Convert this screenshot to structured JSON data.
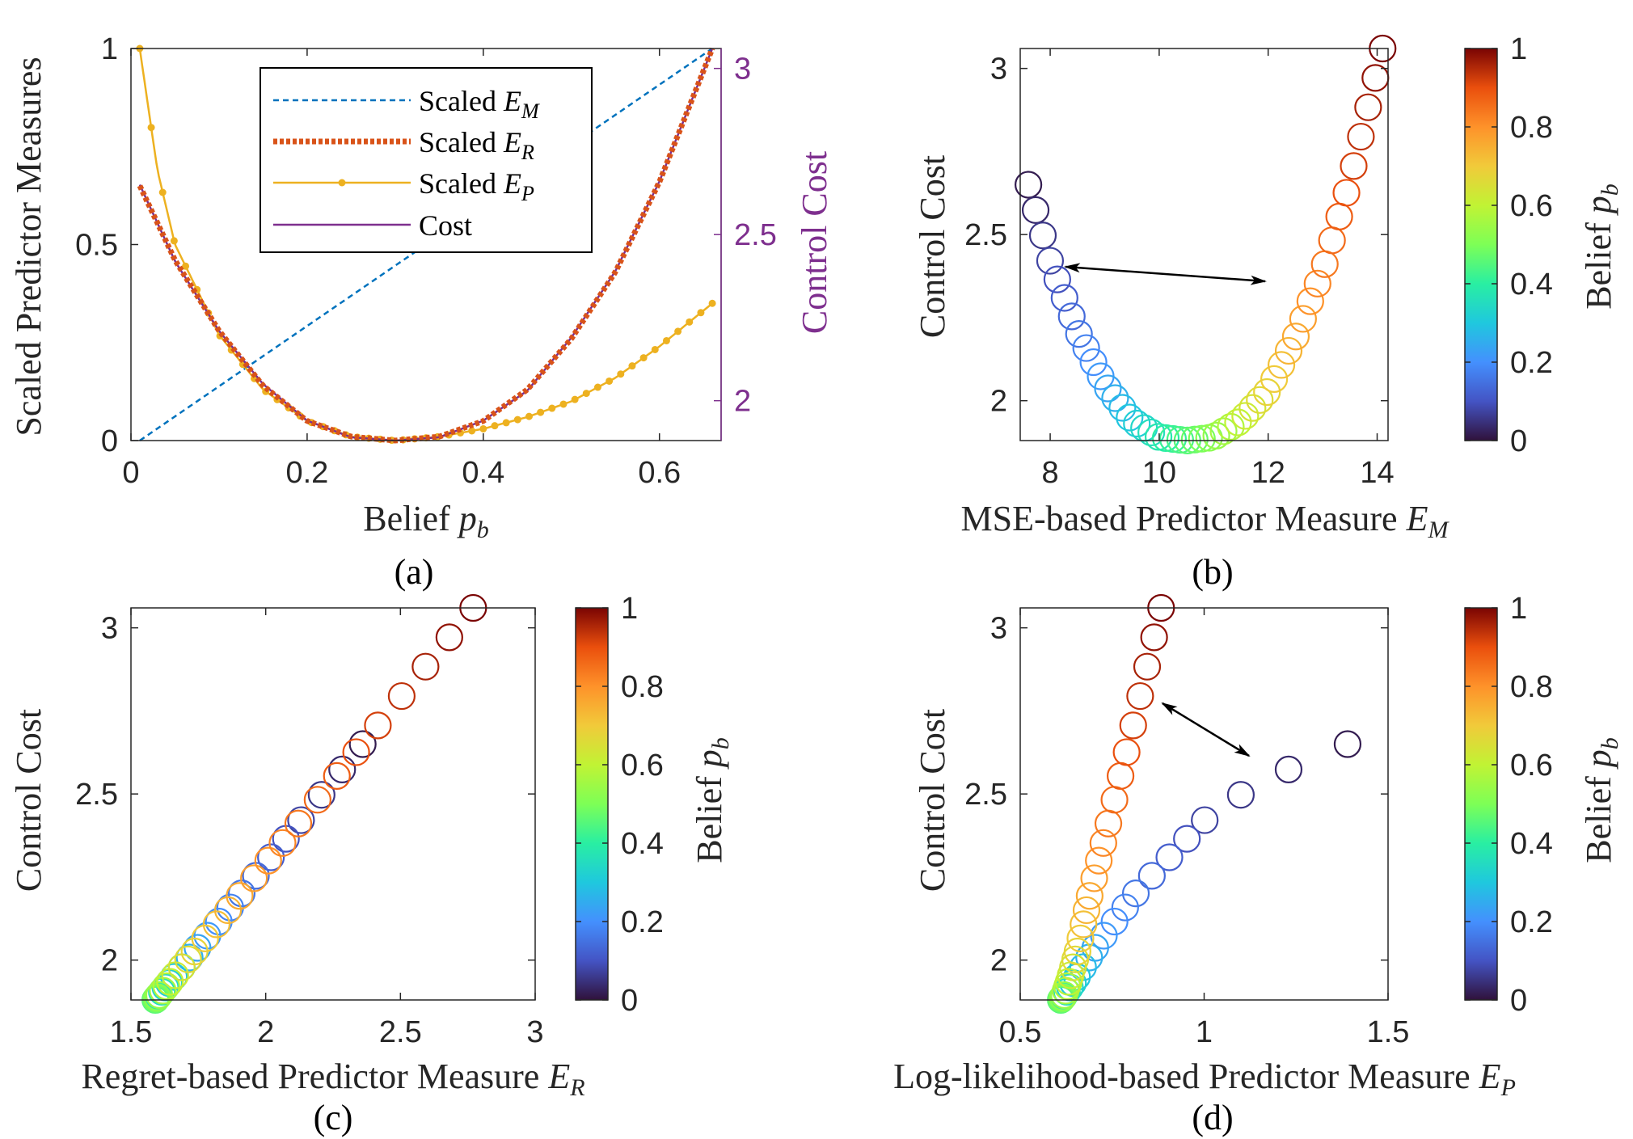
{
  "chart_data": [
    {
      "id": "a",
      "type": "line",
      "caption": "(a)",
      "xlabel": "Belief",
      "xlabel_math": "p",
      "xlabel_sub": "b",
      "ylabel": "Scaled Predictor Measures",
      "y2label": "Control Cost",
      "xlim": [
        0,
        0.67
      ],
      "ylim": [
        0,
        1
      ],
      "y2lim": [
        1.88,
        3.06
      ],
      "xticks": [
        0,
        0.2,
        0.4,
        0.6
      ],
      "xtick_labels": [
        "0",
        "0.2",
        "0.4",
        "0.6"
      ],
      "yticks": [
        0,
        0.5,
        1
      ],
      "ytick_labels": [
        "0",
        "0.5",
        "1"
      ],
      "y2ticks": [
        2,
        2.5,
        3
      ],
      "y2tick_labels": [
        "2",
        "2.5",
        "3"
      ],
      "legend": {
        "position": "top-center",
        "entries": [
          {
            "prefix": "Scaled",
            "math": "E",
            "sub": "M",
            "color": "#0072bd",
            "style": "dashed"
          },
          {
            "prefix": "Scaled",
            "math": "E",
            "sub": "R",
            "color": "#d95319",
            "style": "dotted-thick"
          },
          {
            "prefix": "Scaled",
            "math": "E",
            "sub": "P",
            "color": "#edb120",
            "style": "solid-dot"
          },
          {
            "prefix": "Cost",
            "math": "",
            "sub": "",
            "color": "#7e2f8e",
            "style": "solid"
          }
        ]
      },
      "series": [
        {
          "name": "Scaled E_M",
          "x": [
            0.01,
            0.66
          ],
          "y": [
            0,
            1
          ]
        },
        {
          "name": "Scaled E_R",
          "x": [
            0.01,
            0.05,
            0.1,
            0.15,
            0.2,
            0.25,
            0.3,
            0.35,
            0.4,
            0.45,
            0.5,
            0.55,
            0.6,
            0.66
          ],
          "y": [
            0.65,
            0.46,
            0.28,
            0.14,
            0.05,
            0.01,
            0.0,
            0.01,
            0.05,
            0.13,
            0.26,
            0.43,
            0.66,
            1.0
          ]
        },
        {
          "name": "Scaled E_P",
          "x": [
            0.01,
            0.03,
            0.05,
            0.1,
            0.15,
            0.2,
            0.25,
            0.3,
            0.35,
            0.4,
            0.45,
            0.5,
            0.55,
            0.6,
            0.66
          ],
          "y": [
            1.0,
            0.69,
            0.5,
            0.27,
            0.13,
            0.05,
            0.01,
            0.0,
            0.01,
            0.03,
            0.06,
            0.1,
            0.16,
            0.24,
            0.35
          ]
        },
        {
          "name": "Cost",
          "x": [
            0.01,
            0.05,
            0.1,
            0.15,
            0.2,
            0.25,
            0.3,
            0.35,
            0.4,
            0.45,
            0.5,
            0.55,
            0.6,
            0.66
          ],
          "y": [
            2.65,
            2.42,
            2.21,
            2.05,
            1.94,
            1.89,
            1.88,
            1.89,
            1.94,
            2.03,
            2.19,
            2.39,
            2.66,
            3.06
          ]
        }
      ]
    },
    {
      "id": "b",
      "type": "scatter",
      "caption": "(b)",
      "xlabel": "MSE-based Predictor Measure",
      "xlabel_math": "E",
      "xlabel_sub": "M",
      "ylabel": "Control Cost",
      "colorbar_label": "Belief",
      "colorbar_math": "p",
      "colorbar_sub": "b",
      "colorbar_range": [
        0,
        1
      ],
      "colorbar_ticks": [
        "0",
        "0.2",
        "0.4",
        "0.6",
        "0.8",
        "1"
      ],
      "xlim": [
        7.45,
        14.2
      ],
      "ylim": [
        1.88,
        3.06
      ],
      "xticks": [
        8,
        10,
        12,
        14
      ],
      "xtick_labels": [
        "8",
        "10",
        "12",
        "14"
      ],
      "yticks": [
        2,
        2.5,
        3
      ],
      "ytick_labels": [
        "2",
        "2.5",
        "3"
      ],
      "points_formula": "E_M = 7.6 + 10*b ; Cost(b) ; b = 0.01..0.66",
      "annotation": "double-headed arrow between low-belief and high-belief branches at equal cost"
    },
    {
      "id": "c",
      "type": "scatter",
      "caption": "(c)",
      "xlabel": "Regret-based Predictor Measure",
      "xlabel_math": "E",
      "xlabel_sub": "R",
      "ylabel": "Control Cost",
      "colorbar_label": "Belief",
      "colorbar_math": "p",
      "colorbar_sub": "b",
      "colorbar_range": [
        0,
        1
      ],
      "colorbar_ticks": [
        "0",
        "0.2",
        "0.4",
        "0.6",
        "0.8",
        "1"
      ],
      "xlim": [
        1.5,
        3
      ],
      "ylim": [
        1.88,
        3.06
      ],
      "xticks": [
        1.5,
        2,
        2.5,
        3
      ],
      "xtick_labels": [
        "1.5",
        "2",
        "2.5",
        "3"
      ],
      "yticks": [
        2,
        2.5,
        3
      ],
      "ytick_labels": [
        "2",
        "2.5",
        "3"
      ],
      "points_formula": "E_R linear in cost from (1.6, 1.89) to (2.76, 3.05)"
    },
    {
      "id": "d",
      "type": "scatter",
      "caption": "(d)",
      "xlabel": "Log-likelihood-based Predictor Measure",
      "xlabel_math": "E",
      "xlabel_sub": "P",
      "ylabel": "Control Cost",
      "colorbar_label": "Belief",
      "colorbar_math": "p",
      "colorbar_sub": "b",
      "colorbar_range": [
        0,
        1
      ],
      "colorbar_ticks": [
        "0",
        "0.2",
        "0.4",
        "0.6",
        "0.8",
        "1"
      ],
      "xlim": [
        0.5,
        1.5
      ],
      "ylim": [
        1.88,
        3.06
      ],
      "xticks": [
        0.5,
        1,
        1.5
      ],
      "xtick_labels": [
        "0.5",
        "1",
        "1.5"
      ],
      "yticks": [
        2,
        2.5,
        3
      ],
      "ytick_labels": [
        "2",
        "2.5",
        "3"
      ],
      "points_formula": "E_P = 0.61 + 0.78*Scaled E_P ; Cost(b)",
      "annotation": "double-headed arrow between high-belief branch and low-belief branch"
    }
  ]
}
